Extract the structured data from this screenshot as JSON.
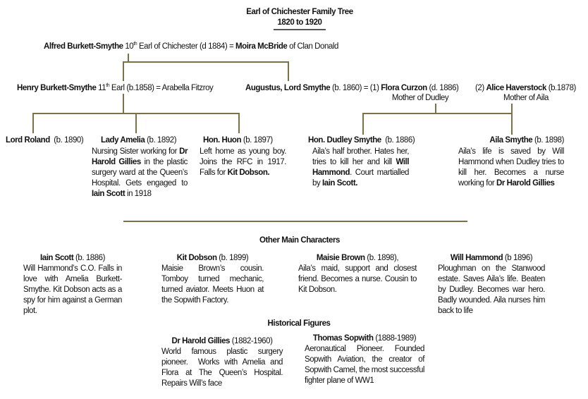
{
  "title": {
    "line1": "Earl of Chichester Family Tree",
    "line2": "1820 to 1920"
  },
  "line_color": "#7a7148",
  "generation1": [
    {
      "t": "Alfred Burkett-Smythe",
      "b": true
    },
    {
      "t": " 10"
    },
    {
      "t": "th",
      "sup": true
    },
    {
      "t": " Earl of Chichester (d 1884) = "
    },
    {
      "t": "Moira McBride",
      "b": true
    },
    {
      "t": " of Clan Donald"
    }
  ],
  "henry": [
    {
      "t": "Henry Burkett-Smythe",
      "b": true
    },
    {
      "t": " 11"
    },
    {
      "t": "th",
      "sup": true
    },
    {
      "t": " Earl (b.1858) = Arabella Fitzroy"
    }
  ],
  "augustus": [
    {
      "t": "Augustus, Lord Smythe",
      "b": true
    },
    {
      "t": " (b. 1860) = (1) "
    },
    {
      "t": "Flora Curzon",
      "b": true
    },
    {
      "t": " (d. 1886)"
    }
  ],
  "alice": [
    {
      "t": "(2) "
    },
    {
      "t": "Alice Haverstock",
      "b": true
    },
    {
      "t": " (b.1878)"
    }
  ],
  "flora_note": "Mother of Dudley",
  "alice_note": "Mother of Aila",
  "children": {
    "roland": {
      "name": [
        {
          "t": "Lord Roland",
          "b": true
        },
        {
          "t": "  (b. 1890)"
        }
      ]
    },
    "amelia": {
      "name": [
        {
          "t": "Lady Amelia",
          "b": true
        },
        {
          "t": " (b. 1892)"
        }
      ],
      "desc": [
        {
          "t": "Nursing Sister working for "
        },
        {
          "t": "Dr Harold Gillies",
          "b": true
        },
        {
          "t": " in the plastic surgery ward at the Queen’s Hospital. Gets engaged to "
        },
        {
          "t": "Iain Scott",
          "b": true
        },
        {
          "t": " in 1918"
        }
      ]
    },
    "huon": {
      "name": [
        {
          "t": "Hon. Huon",
          "b": true
        },
        {
          "t": " (b. 1897)"
        }
      ],
      "desc": [
        {
          "t": "Left home as young boy. Joins the RFC in 1917. Falls for "
        },
        {
          "t": "Kit Dobson.",
          "b": true
        }
      ]
    },
    "dudley": {
      "name": [
        {
          "t": "Hon. Dudley Smythe",
          "b": true
        },
        {
          "t": "  (b. 1886)"
        }
      ],
      "desc": [
        {
          "t": "Aila’s half brother. Hates her, tries to kill her and kill "
        },
        {
          "t": "Will Hammond",
          "b": true
        },
        {
          "t": ". Court martialled by "
        },
        {
          "t": "Iain Scott.",
          "b": true
        }
      ]
    },
    "aila": {
      "name": [
        {
          "t": "Aila Smythe",
          "b": true
        },
        {
          "t": " (b. 1898)"
        }
      ],
      "desc": [
        {
          "t": "Aila’s life is saved by Will Hammond when Dudley tries to kill her. Becomes a nurse working for "
        },
        {
          "t": "Dr Harold Gillies",
          "b": true
        }
      ]
    }
  },
  "other_heading": "Other Main Characters",
  "others": {
    "iain": {
      "name": [
        {
          "t": "Iain Scott",
          "b": true
        },
        {
          "t": " (b. 1886)"
        }
      ],
      "desc": [
        {
          "t": "Will Hammond’s C.O. Falls in love with Amelia Burkett-Smythe. Kit Dobson acts as a spy for him against a German plot."
        }
      ]
    },
    "kit": {
      "name": [
        {
          "t": "Kit Dobson",
          "b": true
        },
        {
          "t": " (b. 1899)"
        }
      ],
      "desc": [
        {
          "t": "Maisie Brown’s cousin. Tomboy turned mechanic, turned aviator. Meets Huon at the Sopwith Factory."
        }
      ]
    },
    "maisie": {
      "name": [
        {
          "t": "Maisie Brown",
          "b": true
        },
        {
          "t": " (b. 1898),"
        }
      ],
      "desc": [
        {
          "t": "Aila’s maid, support and closest friend. Becomes a nurse. Cousin to Kit Dobson."
        }
      ]
    },
    "will": {
      "name": [
        {
          "t": "Will Hammond",
          "b": true
        },
        {
          "t": " (b 1896)"
        }
      ],
      "desc": [
        {
          "t": "Ploughman on the Stanwood estate. Saves Aila’s life. Beaten by Dudley. Becomes war hero. Badly wounded. Aila nurses him back to life"
        }
      ]
    }
  },
  "historical_heading": "Historical Figures",
  "historical": {
    "gillies": {
      "name": [
        {
          "t": "Dr Harold Gillies",
          "b": true
        },
        {
          "t": " (1882-1960)"
        }
      ],
      "desc": [
        {
          "t": "World famous plastic surgery pioneer.  Works with Amelia and Flora at The Queen’s Hospital. Repairs Will’s face"
        }
      ]
    },
    "sopwith": {
      "name": [
        {
          "t": "Thomas Sopwith",
          "b": true
        },
        {
          "t": " (1888-1989)"
        }
      ],
      "desc": [
        {
          "t": "Aeronautical Pioneer. Founded Sopwith Aviation, the creator of Sopwith Camel, the most successful fighter plane of WW1"
        }
      ]
    }
  }
}
